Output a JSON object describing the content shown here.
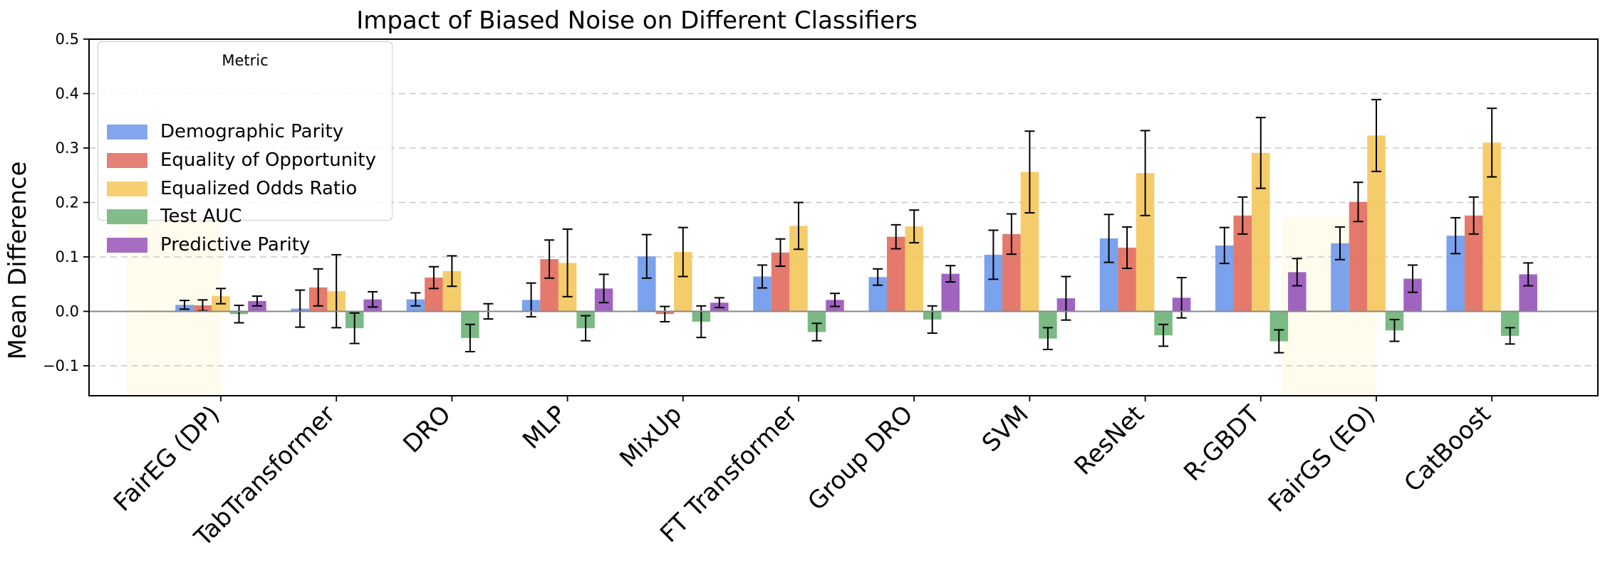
{
  "chart_data": {
    "type": "bar",
    "title": "Impact of Biased Noise on Different Classifiers",
    "xlabel": "",
    "ylabel": "Mean Difference",
    "ylim": [
      -0.155,
      0.5
    ],
    "yticks": [
      -0.1,
      0.0,
      0.1,
      0.2,
      0.3,
      0.4,
      0.5
    ],
    "ytick_labels": [
      "−0.1",
      "0.0",
      "0.1",
      "0.2",
      "0.3",
      "0.4",
      "0.5"
    ],
    "grid": "horizontal dashed",
    "legend": {
      "title": "Metric",
      "placement": "top-left"
    },
    "highlighted_categories": [
      "FairEG (DP)",
      "FairGS (EO)"
    ],
    "categories": [
      "FairEG (DP)",
      "TabTransformer",
      "DRO",
      "MLP",
      "MixUp",
      "FT Transformer",
      "Group DRO",
      "SVM",
      "ResNet",
      "R-GBDT",
      "FairGS (EO)",
      "CatBoost"
    ],
    "series": [
      {
        "name": "Demographic Parity",
        "color": "#6d98ea",
        "values": [
          0.012,
          0.005,
          0.022,
          0.021,
          0.101,
          0.064,
          0.063,
          0.104,
          0.134,
          0.121,
          0.125,
          0.139
        ],
        "errors": [
          0.008,
          0.034,
          0.012,
          0.031,
          0.04,
          0.021,
          0.015,
          0.045,
          0.044,
          0.033,
          0.03,
          0.033
        ]
      },
      {
        "name": "Equality of Opportunity",
        "color": "#e16a5c",
        "values": [
          0.011,
          0.044,
          0.062,
          0.096,
          -0.005,
          0.108,
          0.137,
          0.142,
          0.117,
          0.176,
          0.201,
          0.176
        ],
        "errors": [
          0.01,
          0.034,
          0.02,
          0.035,
          0.014,
          0.025,
          0.022,
          0.037,
          0.038,
          0.034,
          0.036,
          0.034
        ]
      },
      {
        "name": "Equalized Odds Ratio",
        "color": "#f4c75a",
        "values": [
          0.028,
          0.037,
          0.074,
          0.089,
          0.109,
          0.157,
          0.156,
          0.256,
          0.254,
          0.291,
          0.323,
          0.31
        ],
        "errors": [
          0.014,
          0.067,
          0.028,
          0.062,
          0.045,
          0.043,
          0.03,
          0.075,
          0.078,
          0.065,
          0.066,
          0.063
        ]
      },
      {
        "name": "Test AUC",
        "color": "#6db277",
        "values": [
          -0.005,
          -0.031,
          -0.049,
          -0.031,
          -0.019,
          -0.038,
          -0.015,
          -0.05,
          -0.044,
          -0.055,
          -0.035,
          -0.045
        ],
        "errors": [
          0.016,
          0.028,
          0.025,
          0.023,
          0.029,
          0.016,
          0.025,
          0.02,
          0.02,
          0.021,
          0.02,
          0.015
        ]
      },
      {
        "name": "Predictive Parity",
        "color": "#9653b9",
        "values": [
          0.019,
          0.022,
          0.0,
          0.042,
          0.016,
          0.021,
          0.069,
          0.024,
          0.025,
          0.072,
          0.06,
          0.068
        ],
        "errors": [
          0.009,
          0.014,
          0.014,
          0.026,
          0.009,
          0.012,
          0.015,
          0.04,
          0.037,
          0.025,
          0.025,
          0.021
        ]
      }
    ]
  }
}
